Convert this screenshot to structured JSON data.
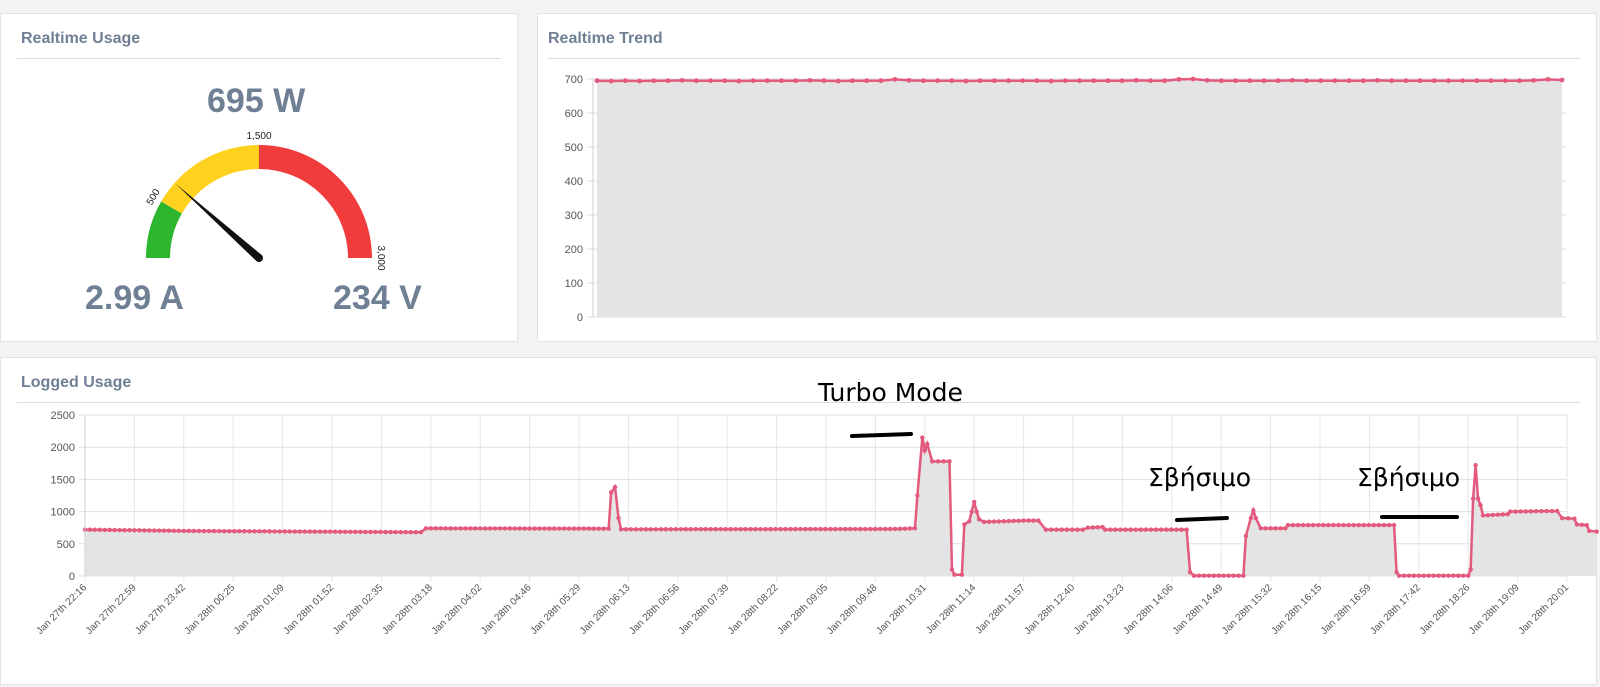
{
  "realtime_usage": {
    "title": "Realtime Usage",
    "power": "695 W",
    "current": "2.99 A",
    "voltage": "234 V",
    "gauge": {
      "min": 0,
      "max": 3000,
      "value": 695,
      "ticks": [
        "500",
        "1,500",
        "3,000"
      ],
      "bands": [
        {
          "from": 0,
          "to": 500,
          "color": "#2eb52e"
        },
        {
          "from": 500,
          "to": 1500,
          "color": "#ffd21f"
        },
        {
          "from": 1500,
          "to": 3000,
          "color": "#f03c3c"
        }
      ]
    }
  },
  "realtime_trend": {
    "title": "Realtime Trend"
  },
  "logged_usage": {
    "title": "Logged Usage"
  },
  "annotations": {
    "turbo": "Turbo Mode",
    "off1": "Σβήσιμο",
    "off2": "Σβήσιμο"
  },
  "colors": {
    "line": "#e35a7e",
    "fill": "#e4e4e4",
    "title": "#6f7f94"
  },
  "chart_data": [
    {
      "type": "area",
      "name": "realtime_trend",
      "ylim": [
        0,
        700
      ],
      "yticks": [
        0,
        100,
        200,
        300,
        400,
        500,
        600,
        700
      ],
      "grid": true,
      "values": [
        695,
        694,
        695,
        694,
        695,
        695,
        696,
        695,
        695,
        695,
        694,
        695,
        695,
        695,
        695,
        696,
        695,
        694,
        695,
        695,
        695,
        699,
        696,
        695,
        695,
        695,
        694,
        695,
        695,
        695,
        695,
        695,
        694,
        695,
        695,
        695,
        695,
        695,
        696,
        695,
        695,
        699,
        700,
        696,
        695,
        695,
        695,
        695,
        695,
        696,
        695,
        695,
        695,
        695,
        695,
        696,
        695,
        695,
        695,
        695,
        695,
        695,
        695,
        695,
        695,
        695,
        696,
        699,
        697
      ]
    },
    {
      "type": "area",
      "name": "logged_usage",
      "ylim": [
        0,
        2500
      ],
      "yticks": [
        0,
        500,
        1000,
        1500,
        2000,
        2500
      ],
      "grid": true,
      "categories": [
        "Jan 27th 22:16",
        "Jan 27th 22:59",
        "Jan 27th 23:42",
        "Jan 28th 00:25",
        "Jan 28th 01:09",
        "Jan 28th 01:52",
        "Jan 28th 02:35",
        "Jan 28th 03:18",
        "Jan 28th 04:02",
        "Jan 28th 04:46",
        "Jan 28th 05:29",
        "Jan 28th 06:13",
        "Jan 28th 06:56",
        "Jan 28th 07:39",
        "Jan 28th 08:22",
        "Jan 28th 09:05",
        "Jan 28th 09:48",
        "Jan 28th 10:31",
        "Jan 28th 11:14",
        "Jan 28th 11:57",
        "Jan 28th 12:40",
        "Jan 28th 13:23",
        "Jan 28th 14:06",
        "Jan 28th 14:49",
        "Jan 28th 15:32",
        "Jan 28th 16:15",
        "Jan 28th 16:59",
        "Jan 28th 17:42",
        "Jan 28th 18:26",
        "Jan 28th 19:09",
        "Jan 28th 20:01"
      ],
      "series_points": [
        [
          0,
          720
        ],
        [
          2,
          700
        ],
        [
          6.8,
          680
        ],
        [
          6.9,
          740
        ],
        [
          10.6,
          735
        ],
        [
          10.65,
          1300
        ],
        [
          10.73,
          1380
        ],
        [
          10.8,
          900
        ],
        [
          10.85,
          725
        ],
        [
          16.4,
          730
        ],
        [
          16.8,
          740
        ],
        [
          16.85,
          1250
        ],
        [
          16.95,
          2150
        ],
        [
          17.0,
          1950
        ],
        [
          17.05,
          2050
        ],
        [
          17.15,
          1780
        ],
        [
          17.5,
          1780
        ],
        [
          17.55,
          100
        ],
        [
          17.6,
          20
        ],
        [
          17.75,
          20
        ],
        [
          17.8,
          800
        ],
        [
          17.9,
          850
        ],
        [
          17.95,
          1000
        ],
        [
          18.0,
          1150
        ],
        [
          18.05,
          1000
        ],
        [
          18.1,
          880
        ],
        [
          18.2,
          840
        ],
        [
          19.0,
          860
        ],
        [
          19.3,
          860
        ],
        [
          19.45,
          720
        ],
        [
          20.2,
          720
        ],
        [
          20.3,
          750
        ],
        [
          20.6,
          760
        ],
        [
          20.65,
          720
        ],
        [
          22.3,
          720
        ],
        [
          22.37,
          60
        ],
        [
          22.45,
          5
        ],
        [
          23.45,
          5
        ],
        [
          23.5,
          620
        ],
        [
          23.6,
          900
        ],
        [
          23.65,
          1020
        ],
        [
          23.7,
          900
        ],
        [
          23.8,
          740
        ],
        [
          24.3,
          740
        ],
        [
          24.35,
          790
        ],
        [
          26.5,
          790
        ],
        [
          26.55,
          60
        ],
        [
          26.6,
          5
        ],
        [
          28.0,
          5
        ],
        [
          28.05,
          100
        ],
        [
          28.1,
          1200
        ],
        [
          28.15,
          1720
        ],
        [
          28.2,
          1200
        ],
        [
          28.25,
          1100
        ],
        [
          28.3,
          940
        ],
        [
          28.8,
          960
        ],
        [
          28.85,
          1000
        ],
        [
          29.8,
          1010
        ],
        [
          29.9,
          900
        ],
        [
          30.15,
          890
        ],
        [
          30.2,
          800
        ],
        [
          30.4,
          790
        ],
        [
          30.45,
          700
        ],
        [
          30.6,
          690
        ]
      ]
    }
  ]
}
